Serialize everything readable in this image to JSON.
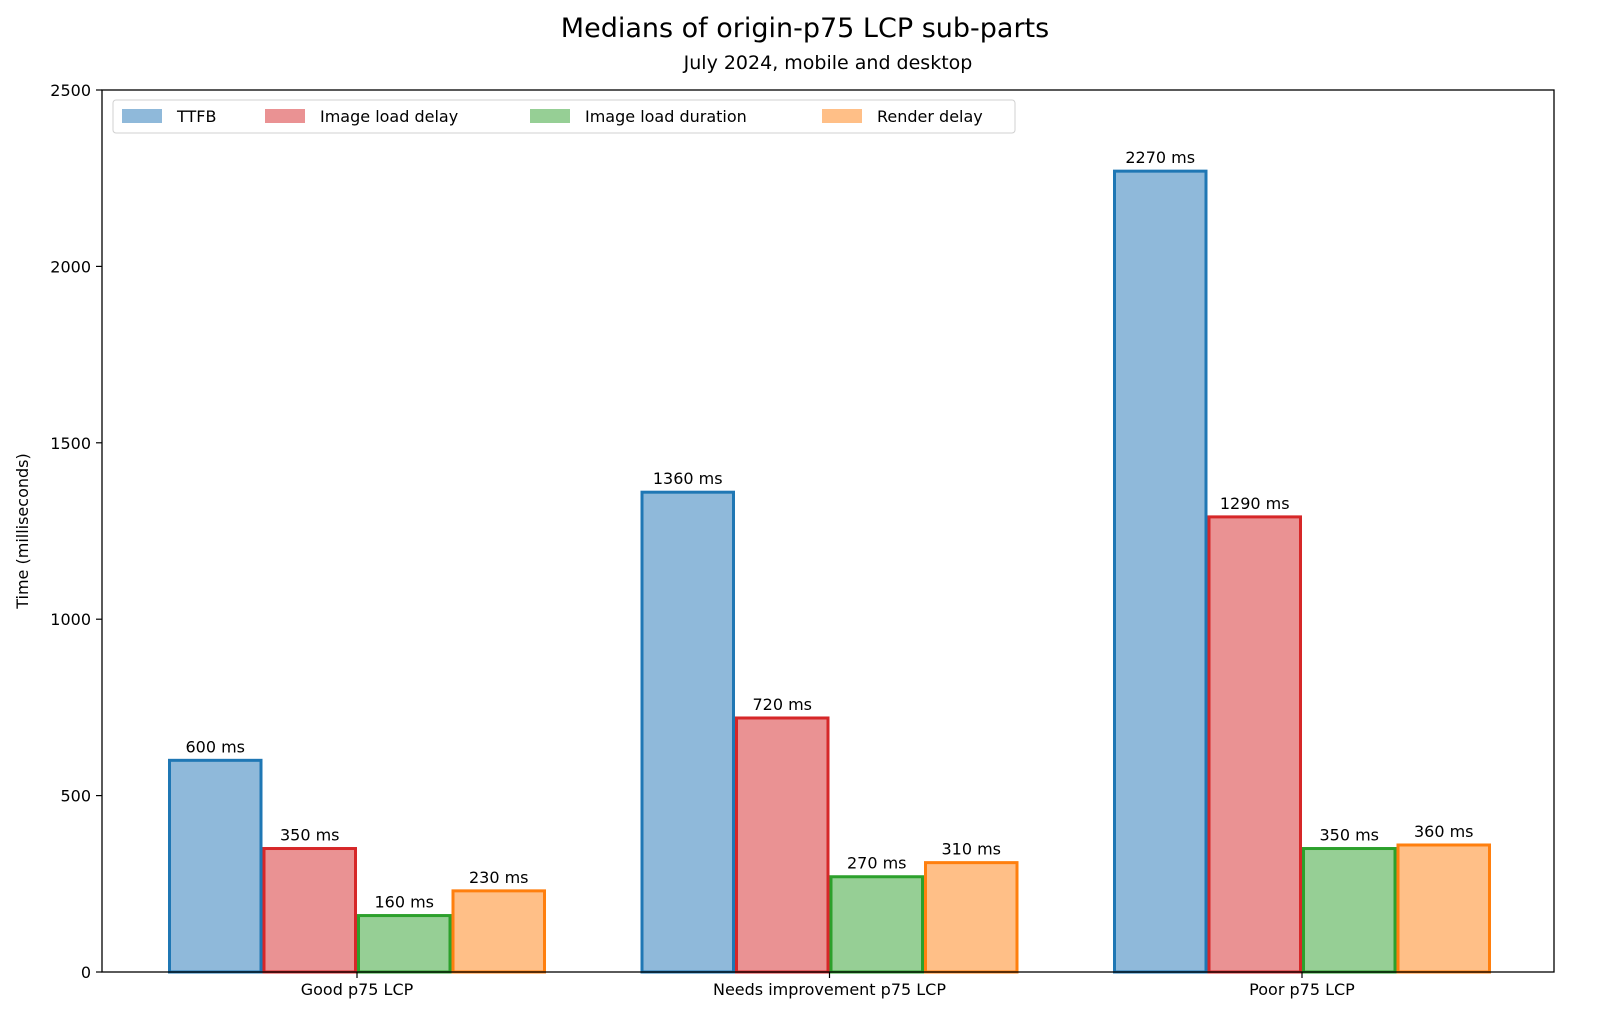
{
  "chart_data": {
    "type": "bar",
    "title": "Medians of origin-p75 LCP sub-parts",
    "subtitle": "July 2024, mobile and desktop",
    "xlabel": "",
    "ylabel": "Time (milliseconds)",
    "ylim": [
      0,
      2500
    ],
    "yticks": [
      0,
      500,
      1000,
      1500,
      2000,
      2500
    ],
    "grid": false,
    "legend_position": "top-left",
    "categories": [
      "Good p75 LCP",
      "Needs improvement p75 LCP",
      "Poor p75 LCP"
    ],
    "series": [
      {
        "name": "TTFB",
        "values": [
          600,
          1360,
          2270
        ],
        "labels": [
          "600 ms",
          "1360 ms",
          "2270 ms"
        ],
        "fill": "#8fb9da",
        "edge": "#1f77b4"
      },
      {
        "name": "Image load delay",
        "values": [
          350,
          720,
          1290
        ],
        "labels": [
          "350 ms",
          "720 ms",
          "1290 ms"
        ],
        "fill": "#ea9293",
        "edge": "#d62728"
      },
      {
        "name": "Image load duration",
        "values": [
          160,
          270,
          350
        ],
        "labels": [
          "160 ms",
          "270 ms",
          "350 ms"
        ],
        "fill": "#96cf95",
        "edge": "#2ca02c"
      },
      {
        "name": "Render delay",
        "values": [
          230,
          310,
          360
        ],
        "labels": [
          "230 ms",
          "310 ms",
          "360 ms"
        ],
        "fill": "#ffbf87",
        "edge": "#ff7f0e"
      }
    ]
  }
}
